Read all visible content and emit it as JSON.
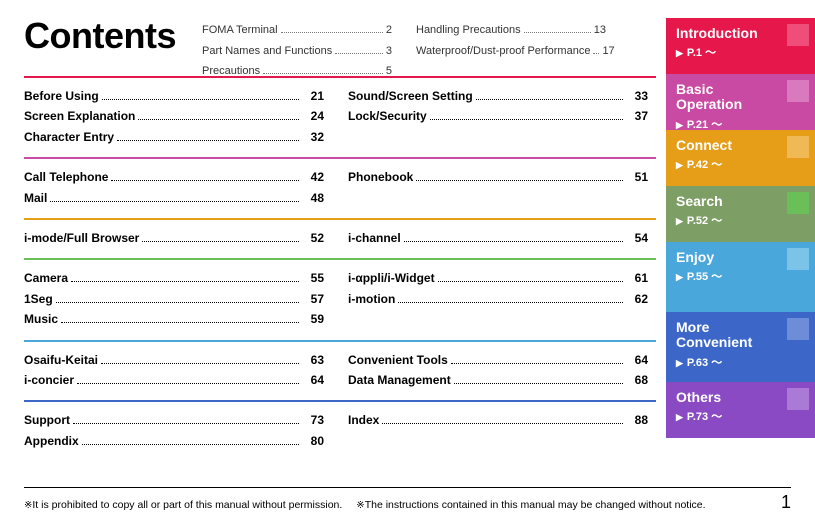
{
  "title": "Contents",
  "tabs": [
    {
      "title": "Introduction",
      "sub": "P.1 ～",
      "bg": "#e6174a",
      "chip": "#ef4e7b"
    },
    {
      "title": "Basic Operation",
      "sub": "P.21 ～",
      "bg": "#c94aa3",
      "chip": "#d979be"
    },
    {
      "title": "Connect",
      "sub": "P.42 ～",
      "bg": "#e69d17",
      "chip": "#f0b955"
    },
    {
      "title": "Search",
      "sub": "P.52 ～",
      "bg": "#7d9e65",
      "chip": "#6bbf59"
    },
    {
      "title": "Enjoy",
      "sub": "P.55 ～",
      "bg": "#4aa7dc",
      "chip": "#7bc3e8"
    },
    {
      "title": "More Convenient",
      "sub": "P.63 ～",
      "bg": "#3c67c9",
      "chip": "#6e8dd9"
    },
    {
      "title": "Others",
      "sub": "P.73 ～",
      "bg": "#8a4ac4",
      "chip": "#aa7ad6"
    }
  ],
  "intro": {
    "left": [
      {
        "label": "FOMA Terminal",
        "page": "2"
      },
      {
        "label": "Part Names and Functions",
        "page": "3"
      },
      {
        "label": "Precautions",
        "page": "5"
      }
    ],
    "right": [
      {
        "label": "Handling Precautions",
        "page": "13"
      },
      {
        "label": "Waterproof/Dust-proof Performance",
        "page": "17"
      }
    ]
  },
  "sections": [
    {
      "color": "#e6174a",
      "left": [
        {
          "label": "Before Using",
          "page": "21"
        },
        {
          "label": "Screen Explanation",
          "page": "24"
        },
        {
          "label": "Character Entry",
          "page": "32"
        }
      ],
      "right": [
        {
          "label": "Sound/Screen Setting",
          "page": "33"
        },
        {
          "label": "Lock/Security",
          "page": "37"
        }
      ]
    },
    {
      "color": "#c94aa3",
      "left": [
        {
          "label": "Call Telephone",
          "page": "42"
        },
        {
          "label": "Mail",
          "page": "48"
        }
      ],
      "right": [
        {
          "label": "Phonebook",
          "page": "51"
        }
      ]
    },
    {
      "color": "#e69d17",
      "left": [
        {
          "label": "i-mode/Full Browser",
          "page": "52"
        }
      ],
      "right": [
        {
          "label": "i-channel",
          "page": "54"
        }
      ]
    },
    {
      "color": "#6bbf59",
      "left": [
        {
          "label": "Camera",
          "page": "55"
        },
        {
          "label": "1Seg",
          "page": "57"
        },
        {
          "label": "Music",
          "page": "59"
        }
      ],
      "right": [
        {
          "label": "i-αppli/i-Widget",
          "page": "61"
        },
        {
          "label": "i-motion",
          "page": "62"
        }
      ]
    },
    {
      "color": "#4aa7dc",
      "left": [
        {
          "label": "Osaifu-Keitai",
          "page": "63"
        },
        {
          "label": "i-concier",
          "page": "64"
        }
      ],
      "right": [
        {
          "label": "Convenient Tools",
          "page": "64"
        },
        {
          "label": "Data Management",
          "page": "68"
        }
      ]
    },
    {
      "color": "#3c67c9",
      "left": [
        {
          "label": "Support",
          "page": "73"
        },
        {
          "label": "Appendix",
          "page": "80"
        }
      ],
      "right": [
        {
          "label": "Index",
          "page": "88"
        }
      ]
    }
  ],
  "footnotes": {
    "a": "It is prohibited to copy all or part of this manual without permission.",
    "b": "The instructions contained in this manual may be changed without notice.",
    "page": "1",
    "ast": "※"
  }
}
